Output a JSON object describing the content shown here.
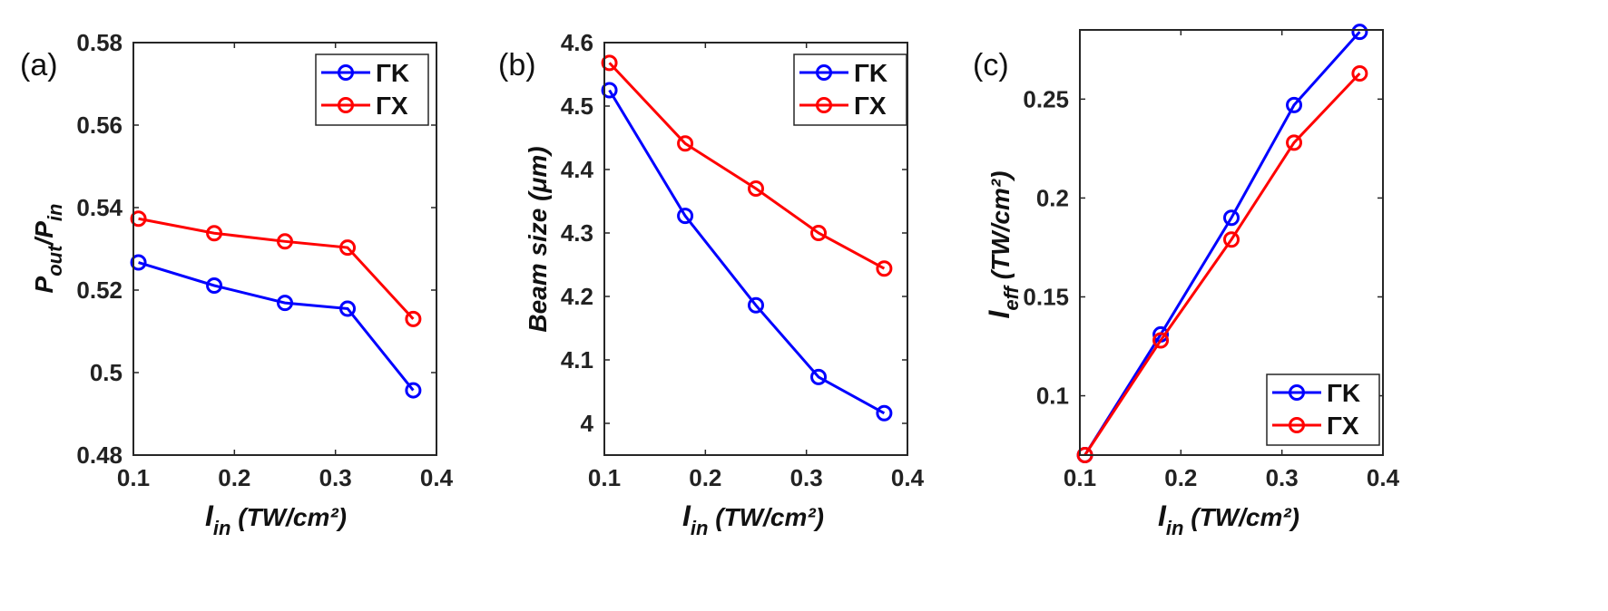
{
  "colors": {
    "gk": "#0000ff",
    "gx": "#ff0000",
    "axis": "#262626"
  },
  "chart_data": [
    {
      "type": "line",
      "panel_label": "(a)",
      "x": [
        0.105,
        0.18,
        0.25,
        0.312,
        0.377
      ],
      "series": [
        {
          "name": "ΓK",
          "values": [
            0.5267,
            0.5211,
            0.5169,
            0.5155,
            0.4957
          ]
        },
        {
          "name": "ΓX",
          "values": [
            0.5373,
            0.5338,
            0.5318,
            0.5303,
            0.513
          ]
        }
      ],
      "xlim": [
        0.1,
        0.4
      ],
      "ylim": [
        0.48,
        0.58
      ],
      "xticks": [
        0.1,
        0.2,
        0.3,
        0.4
      ],
      "xtick_labels": [
        "0.1",
        "0.2",
        "0.3",
        "0.4"
      ],
      "yticks": [
        0.48,
        0.5,
        0.52,
        0.54,
        0.56,
        0.58
      ],
      "ytick_labels": [
        "0.48",
        "0.5",
        "0.52",
        "0.54",
        "0.56",
        "0.58"
      ],
      "xlabel": {
        "main": "I",
        "sub": "in",
        "rest": " (TW/cm²)"
      },
      "ylabel": {
        "p1": "P",
        "s1": "out",
        "p2": "/P",
        "s2": "in"
      },
      "legend_position": "top-right"
    },
    {
      "type": "line",
      "panel_label": "(b)",
      "x": [
        0.105,
        0.18,
        0.25,
        0.312,
        0.377
      ],
      "series": [
        {
          "name": "ΓK",
          "values": [
            4.525,
            4.327,
            4.186,
            4.073,
            4.016
          ]
        },
        {
          "name": "ΓX",
          "values": [
            4.568,
            4.441,
            4.37,
            4.3,
            4.244
          ]
        }
      ],
      "xlim": [
        0.1,
        0.4
      ],
      "ylim": [
        3.95,
        4.6
      ],
      "xticks": [
        0.1,
        0.2,
        0.3,
        0.4
      ],
      "xtick_labels": [
        "0.1",
        "0.2",
        "0.3",
        "0.4"
      ],
      "yticks": [
        4.0,
        4.1,
        4.2,
        4.3,
        4.4,
        4.5,
        4.6
      ],
      "ytick_labels": [
        "4",
        "4.1",
        "4.2",
        "4.3",
        "4.4",
        "4.5",
        "4.6"
      ],
      "xlabel": {
        "main": "I",
        "sub": "in",
        "rest": " (TW/cm²)"
      },
      "ylabel": {
        "text": "Beam size (μm)"
      },
      "legend_position": "top-right"
    },
    {
      "type": "line",
      "panel_label": "(c)",
      "x": [
        0.105,
        0.18,
        0.25,
        0.312,
        0.377
      ],
      "series": [
        {
          "name": "ΓK",
          "values": [
            0.07,
            0.131,
            0.19,
            0.247,
            0.284
          ]
        },
        {
          "name": "ΓX",
          "values": [
            0.07,
            0.128,
            0.179,
            0.228,
            0.263
          ]
        }
      ],
      "xlim": [
        0.1,
        0.4
      ],
      "ylim": [
        0.07,
        0.285
      ],
      "xticks": [
        0.1,
        0.2,
        0.3,
        0.4
      ],
      "xtick_labels": [
        "0.1",
        "0.2",
        "0.3",
        "0.4"
      ],
      "yticks": [
        0.1,
        0.15,
        0.2,
        0.25
      ],
      "ytick_labels": [
        "0.1",
        "0.15",
        "0.2",
        "0.25"
      ],
      "xlabel": {
        "main": "I",
        "sub": "in",
        "rest": " (TW/cm²)"
      },
      "ylabel": {
        "main": "I",
        "sub": "eff",
        "rest": " (TW/cm²)"
      },
      "legend_position": "bottom-right"
    }
  ]
}
